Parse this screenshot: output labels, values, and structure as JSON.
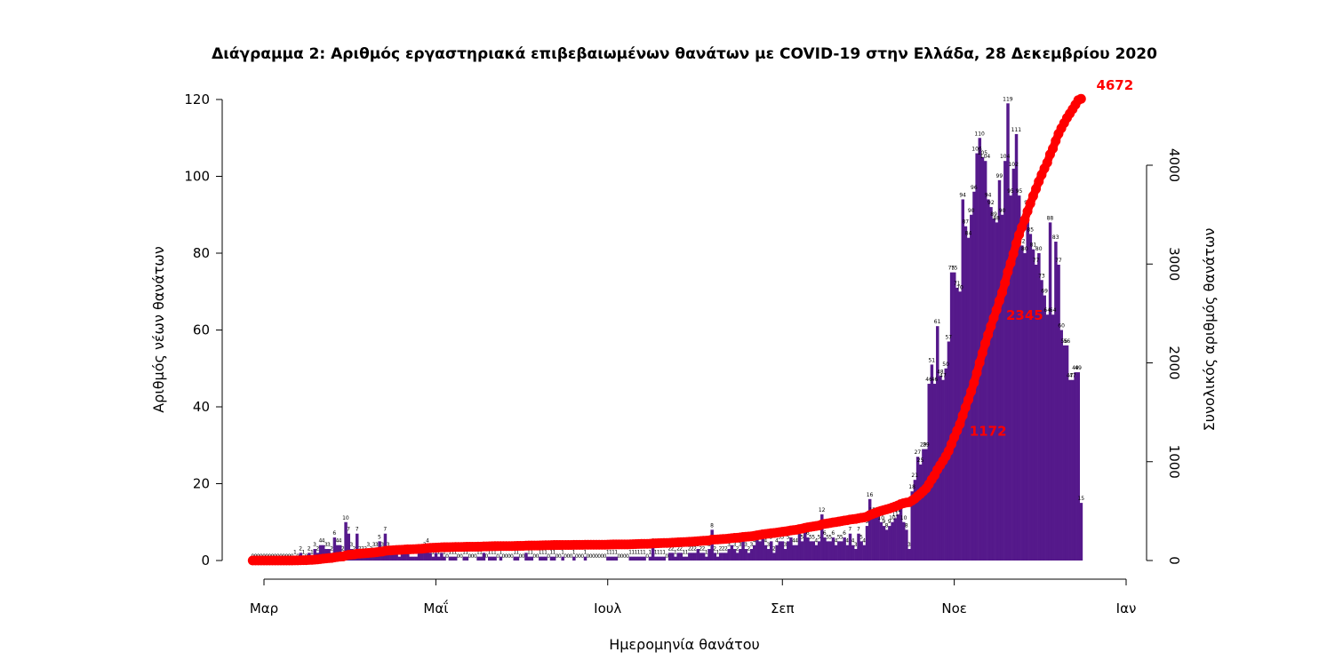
{
  "chart_data": {
    "type": "bar",
    "title": "Διάγραμμα 2: Αριθμός εργαστηριακά επιβεβαιωμένων θανάτων με COVID-19 στην Ελλάδα, 28 Δεκεμβρίου 2020",
    "xlabel": "Ημερομηνία θανάτου",
    "ylabel": "Αριθμός νέων θανάτων",
    "y2label": "Συνολικός αριθμός θανάτων",
    "x_start": "2020-02-26",
    "x_end": "2020-12-28",
    "x_ticks": [
      {
        "date": "2020-03-01",
        "label": "Μαρ"
      },
      {
        "date": "2020-05-01",
        "label": "Μαΐ"
      },
      {
        "date": "2020-07-01",
        "label": "Ιουλ"
      },
      {
        "date": "2020-09-01",
        "label": "Σεπ"
      },
      {
        "date": "2020-11-01",
        "label": "Νοε"
      },
      {
        "date": "2021-01-01",
        "label": "Ιαν"
      }
    ],
    "ylim": [
      0,
      120
    ],
    "y_ticks": [
      0,
      20,
      40,
      60,
      80,
      100,
      120
    ],
    "y2lim": [
      0,
      4000
    ],
    "y2_ticks": [
      0,
      1000,
      2000,
      3000,
      4000
    ],
    "bar_color": "#55198b",
    "line_color": "#ff0000",
    "series": [
      {
        "name": "Αριθμός νέων θανάτων",
        "start_date": "2020-02-26",
        "values": [
          0,
          0,
          0,
          0,
          0,
          0,
          0,
          0,
          0,
          0,
          0,
          0,
          0,
          0,
          0,
          1,
          0,
          2,
          1,
          0,
          2,
          1,
          3,
          2,
          4,
          4,
          3,
          3,
          2,
          6,
          4,
          4,
          2,
          10,
          7,
          3,
          2,
          7,
          2,
          2,
          2,
          3,
          2,
          3,
          3,
          5,
          3,
          7,
          3,
          2,
          2,
          2,
          1,
          2,
          2,
          2,
          1,
          1,
          1,
          2,
          2,
          3,
          4,
          2,
          1,
          2,
          1,
          2,
          1,
          0,
          1,
          1,
          1,
          0,
          0,
          1,
          1,
          0,
          0,
          0,
          1,
          1,
          2,
          0,
          1,
          1,
          1,
          0,
          1,
          0,
          0,
          0,
          0,
          1,
          1,
          0,
          0,
          2,
          1,
          1,
          0,
          0,
          1,
          1,
          1,
          0,
          1,
          1,
          0,
          0,
          1,
          0,
          0,
          0,
          1,
          0,
          0,
          0,
          1,
          0,
          0,
          0,
          0,
          0,
          0,
          0,
          1,
          1,
          1,
          1,
          0,
          0,
          0,
          0,
          1,
          1,
          1,
          1,
          1,
          1,
          0,
          1,
          4,
          1,
          1,
          1,
          1,
          0,
          2,
          2,
          1,
          2,
          2,
          1,
          1,
          2,
          2,
          2,
          3,
          2,
          2,
          1,
          3,
          8,
          2,
          1,
          2,
          2,
          2,
          3,
          4,
          3,
          2,
          3,
          5,
          3,
          2,
          3,
          4,
          6,
          5,
          6,
          4,
          3,
          5,
          2,
          4,
          5,
          5,
          3,
          5,
          6,
          4,
          4,
          7,
          5,
          8,
          6,
          5,
          5,
          4,
          5,
          12,
          6,
          5,
          5,
          6,
          4,
          5,
          5,
          6,
          4,
          7,
          4,
          3,
          7,
          5,
          4,
          9,
          16,
          12,
          12,
          12,
          10,
          9,
          8,
          9,
          10,
          11,
          12,
          14,
          10,
          8,
          3,
          18,
          21,
          27,
          25,
          29,
          29,
          46,
          51,
          46,
          61,
          48,
          47,
          50,
          57,
          75,
          75,
          71,
          70,
          94,
          87,
          84,
          90,
          96,
          106,
          110,
          105,
          104,
          94,
          92,
          89,
          88,
          99,
          90,
          104,
          119,
          95,
          102,
          111,
          95,
          82,
          80,
          92,
          85,
          81,
          77,
          80,
          73,
          69,
          64,
          88,
          64,
          83,
          77,
          60,
          56,
          56,
          47,
          47,
          49,
          49,
          15
        ],
        "labels_shown": true
      },
      {
        "name": "Συνολικός αριθμός θανάτων",
        "axis": "right",
        "labels": [
          {
            "date": "2020-11-13",
            "value": 1172,
            "label": "1172"
          },
          {
            "date": "2020-11-26",
            "value": 2345,
            "label": "2345"
          },
          {
            "date": "2020-12-28",
            "value": 4672,
            "label": "4672"
          }
        ]
      }
    ],
    "grid": false,
    "legend": "none"
  }
}
